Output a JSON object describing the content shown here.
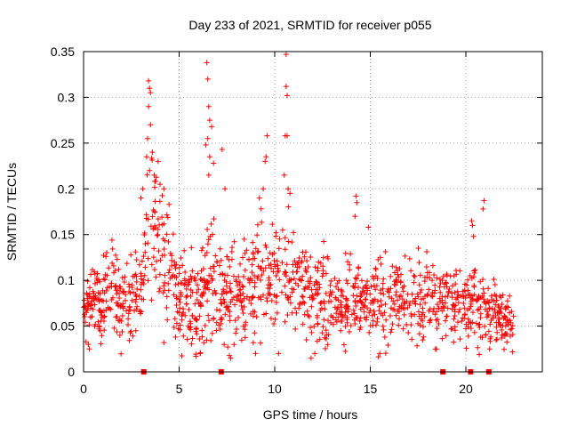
{
  "chart_data": {
    "type": "scatter",
    "title": "Day 233 of 2021, SRMTID for receiver p055",
    "xlabel": "GPS time / hours",
    "ylabel": "SRMTID / TECUs",
    "xlim": [
      0,
      24
    ],
    "ylim": [
      0,
      0.35
    ],
    "xticks": [
      {
        "value": 0,
        "label": "0"
      },
      {
        "value": 5,
        "label": "5"
      },
      {
        "value": 10,
        "label": "10"
      },
      {
        "value": 15,
        "label": "15"
      },
      {
        "value": 20,
        "label": "20"
      }
    ],
    "yticks": [
      {
        "value": 0,
        "label": "0"
      },
      {
        "value": 0.05,
        "label": "0.05"
      },
      {
        "value": 0.1,
        "label": "0.1"
      },
      {
        "value": 0.15,
        "label": "0.15"
      },
      {
        "value": 0.2,
        "label": "0.2"
      },
      {
        "value": 0.25,
        "label": "0.25"
      },
      {
        "value": 0.3,
        "label": "0.3"
      },
      {
        "value": 0.35,
        "label": "0.35"
      }
    ],
    "grid": true,
    "marker_color": "#ff0000",
    "marker": "plus",
    "baseline_markers_x": [
      3.15,
      7.2,
      18.8,
      20.25,
      21.2
    ],
    "envelope": {
      "x": [
        0,
        0.5,
        1,
        1.5,
        2,
        2.5,
        3,
        3.3,
        3.5,
        3.8,
        4.2,
        4.6,
        5,
        5.5,
        6,
        6.5,
        7,
        7.5,
        8,
        8.5,
        9,
        9.5,
        10,
        10.5,
        11,
        11.5,
        12,
        12.5,
        13,
        13.5,
        14,
        14.5,
        15,
        15.5,
        16,
        16.5,
        17,
        17.5,
        18,
        18.5,
        19,
        19.5,
        20,
        20.5,
        21,
        21.5,
        22,
        22.5
      ],
      "center": [
        0.07,
        0.075,
        0.07,
        0.1,
        0.07,
        0.08,
        0.09,
        0.14,
        0.17,
        0.16,
        0.13,
        0.1,
        0.085,
        0.07,
        0.08,
        0.1,
        0.09,
        0.085,
        0.08,
        0.09,
        0.1,
        0.11,
        0.1,
        0.11,
        0.1,
        0.09,
        0.08,
        0.08,
        0.075,
        0.075,
        0.08,
        0.075,
        0.075,
        0.08,
        0.07,
        0.075,
        0.08,
        0.08,
        0.085,
        0.075,
        0.08,
        0.075,
        0.075,
        0.07,
        0.07,
        0.06,
        0.055,
        0.05
      ],
      "spread": [
        0.02,
        0.02,
        0.025,
        0.03,
        0.025,
        0.025,
        0.03,
        0.04,
        0.05,
        0.05,
        0.045,
        0.04,
        0.035,
        0.03,
        0.035,
        0.04,
        0.04,
        0.035,
        0.03,
        0.035,
        0.04,
        0.04,
        0.04,
        0.04,
        0.035,
        0.03,
        0.03,
        0.03,
        0.025,
        0.025,
        0.03,
        0.025,
        0.025,
        0.03,
        0.025,
        0.025,
        0.03,
        0.03,
        0.03,
        0.025,
        0.025,
        0.025,
        0.025,
        0.025,
        0.025,
        0.02,
        0.02,
        0.02
      ]
    },
    "point_count": 1400,
    "highlights": [
      {
        "x": 3.4,
        "y": 0.318
      },
      {
        "x": 3.45,
        "y": 0.31
      },
      {
        "x": 3.5,
        "y": 0.305
      },
      {
        "x": 3.4,
        "y": 0.29
      },
      {
        "x": 3.35,
        "y": 0.255
      },
      {
        "x": 3.3,
        "y": 0.235
      },
      {
        "x": 3.5,
        "y": 0.27
      },
      {
        "x": 3.45,
        "y": 0.22
      },
      {
        "x": 3.6,
        "y": 0.24
      },
      {
        "x": 3.7,
        "y": 0.215
      },
      {
        "x": 3.9,
        "y": 0.23
      },
      {
        "x": 4.0,
        "y": 0.205
      },
      {
        "x": 4.2,
        "y": 0.2
      },
      {
        "x": 3.0,
        "y": 0.19
      },
      {
        "x": 3.1,
        "y": 0.2
      },
      {
        "x": 6.45,
        "y": 0.338
      },
      {
        "x": 6.5,
        "y": 0.32
      },
      {
        "x": 6.55,
        "y": 0.29
      },
      {
        "x": 6.6,
        "y": 0.275
      },
      {
        "x": 6.7,
        "y": 0.268
      },
      {
        "x": 6.5,
        "y": 0.255
      },
      {
        "x": 6.4,
        "y": 0.248
      },
      {
        "x": 6.6,
        "y": 0.235
      },
      {
        "x": 6.8,
        "y": 0.228
      },
      {
        "x": 6.55,
        "y": 0.215
      },
      {
        "x": 7.25,
        "y": 0.243
      },
      {
        "x": 7.4,
        "y": 0.2
      },
      {
        "x": 9.6,
        "y": 0.258
      },
      {
        "x": 9.5,
        "y": 0.23
      },
      {
        "x": 9.55,
        "y": 0.235
      },
      {
        "x": 9.4,
        "y": 0.2
      },
      {
        "x": 9.2,
        "y": 0.19
      },
      {
        "x": 10.6,
        "y": 0.347
      },
      {
        "x": 10.6,
        "y": 0.312
      },
      {
        "x": 10.65,
        "y": 0.302
      },
      {
        "x": 10.55,
        "y": 0.258
      },
      {
        "x": 10.65,
        "y": 0.258
      },
      {
        "x": 10.5,
        "y": 0.215
      },
      {
        "x": 10.7,
        "y": 0.2
      },
      {
        "x": 10.8,
        "y": 0.195
      },
      {
        "x": 14.25,
        "y": 0.192
      },
      {
        "x": 14.3,
        "y": 0.185
      },
      {
        "x": 14.2,
        "y": 0.17
      },
      {
        "x": 14.9,
        "y": 0.158
      },
      {
        "x": 20.3,
        "y": 0.165
      },
      {
        "x": 20.35,
        "y": 0.16
      },
      {
        "x": 20.4,
        "y": 0.148
      },
      {
        "x": 20.95,
        "y": 0.187
      },
      {
        "x": 20.9,
        "y": 0.178
      },
      {
        "x": 9.0,
        "y": 0.02
      },
      {
        "x": 10.2,
        "y": 0.02
      },
      {
        "x": 11.9,
        "y": 0.015
      },
      {
        "x": 12.1,
        "y": 0.02
      },
      {
        "x": 15.5,
        "y": 0.02
      },
      {
        "x": 6.1,
        "y": 0.02
      },
      {
        "x": 7.7,
        "y": 0.015
      },
      {
        "x": 0.25,
        "y": 0.03
      },
      {
        "x": 0.3,
        "y": 0.025
      },
      {
        "x": 1.9,
        "y": 0.04
      }
    ]
  }
}
